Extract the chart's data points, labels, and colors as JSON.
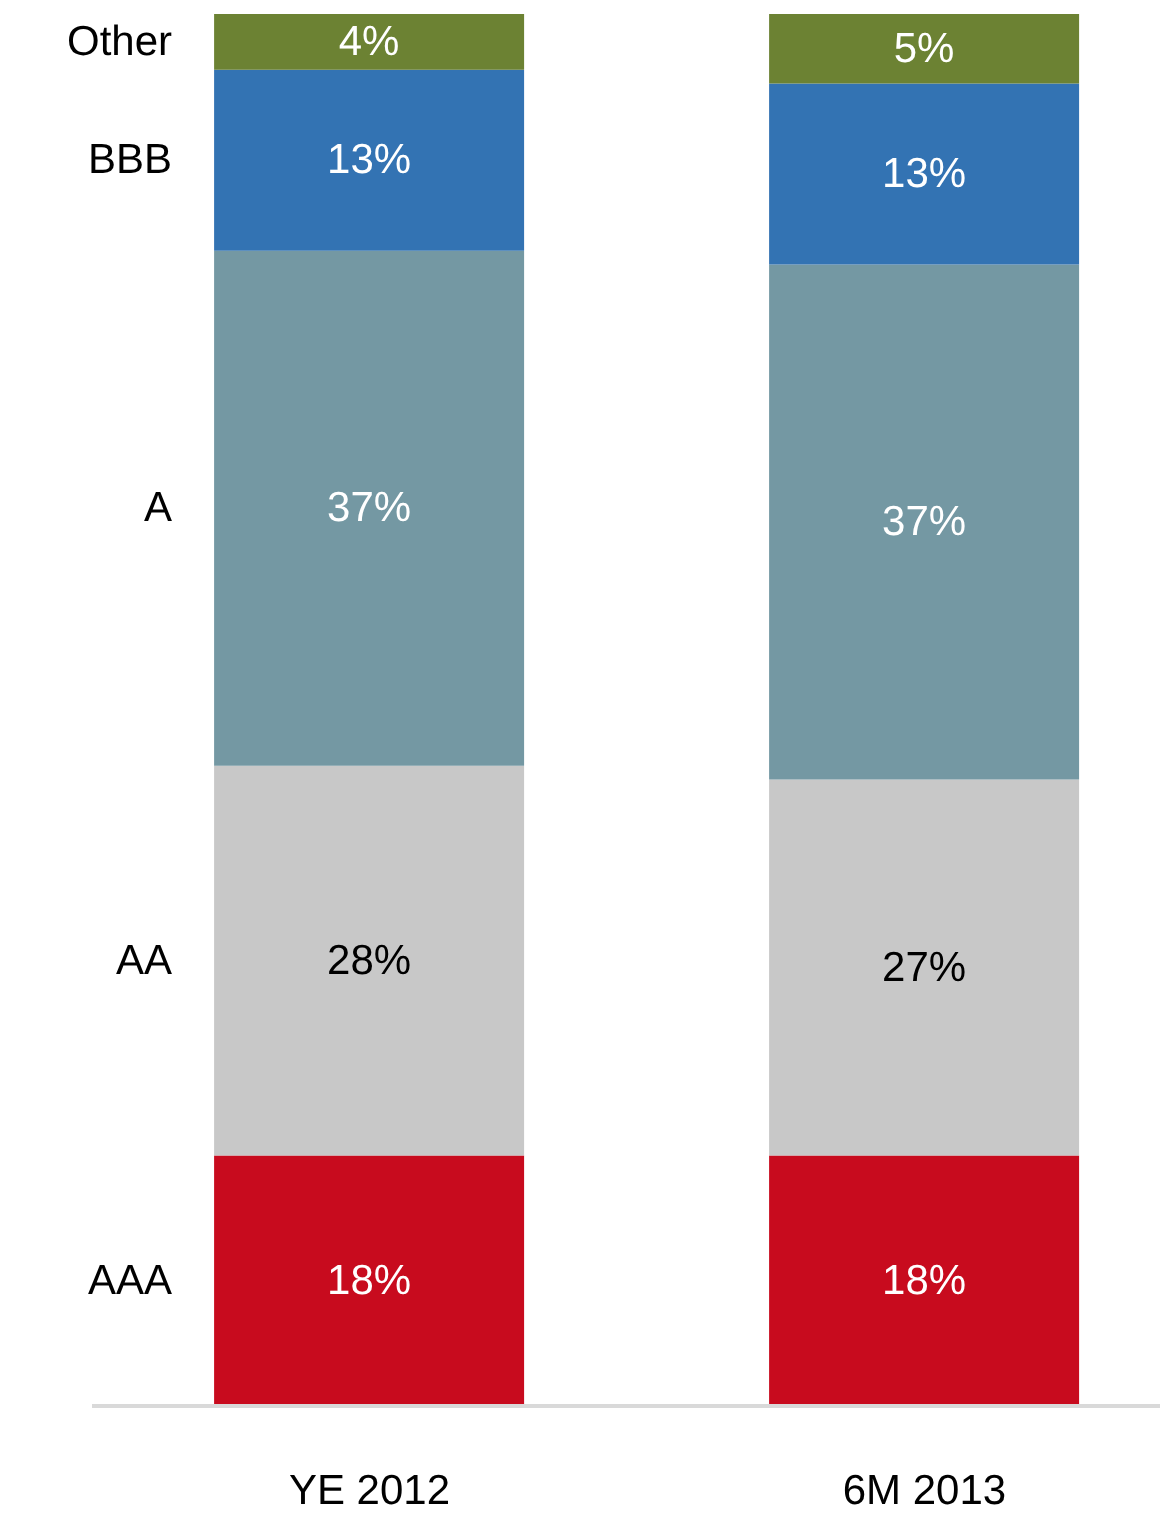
{
  "chart_data": {
    "type": "bar",
    "stacked": true,
    "tick_labels": "x",
    "categories": [
      "YE 2012",
      "6M 2013"
    ],
    "series": [
      {
        "name": "AAA",
        "color": "#c80b1e",
        "values": [
          18,
          18
        ],
        "value_labels": [
          "18%",
          "18%"
        ]
      },
      {
        "name": "AA",
        "color": "#c8c8c8",
        "values": [
          28,
          27
        ],
        "value_labels": [
          "28%",
          "27%"
        ]
      },
      {
        "name": "A",
        "color": "#7498a3",
        "values": [
          37,
          37
        ],
        "value_labels": [
          "37%",
          "37%"
        ]
      },
      {
        "name": "BBB",
        "color": "#3373b3",
        "values": [
          13,
          13
        ],
        "value_labels": [
          "13%",
          "13%"
        ]
      },
      {
        "name": "Other",
        "color": "#6c8233",
        "values": [
          4,
          5
        ],
        "value_labels": [
          "4%",
          "5%"
        ]
      }
    ]
  }
}
